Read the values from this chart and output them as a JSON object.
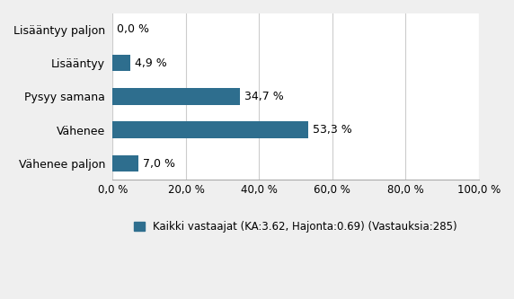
{
  "categories": [
    "Lisääntyy paljon",
    "Lisääntyy",
    "Pysyy samana",
    "Vähenee",
    "Vähenee paljon"
  ],
  "values": [
    0.0,
    4.9,
    34.7,
    53.3,
    7.0
  ],
  "labels": [
    "0,0 %",
    "4,9 %",
    "34,7 %",
    "53,3 %",
    "7,0 %"
  ],
  "bar_color": "#2E6E8E",
  "background_color": "#EFEFEF",
  "plot_bg_color": "#FFFFFF",
  "xlim": [
    0,
    100
  ],
  "xticks": [
    0,
    20,
    40,
    60,
    80,
    100
  ],
  "xtick_labels": [
    "0,0 %",
    "20,0 %",
    "40,0 %",
    "60,0 %",
    "80,0 %",
    "100,0 %"
  ],
  "legend_text": "Kaikki vastaajat (KA:3.62, Hajonta:0.69) (Vastauksia:285)",
  "bar_height": 0.5,
  "label_fontsize": 9,
  "tick_fontsize": 8.5,
  "legend_fontsize": 8.5,
  "ytick_fontsize": 9
}
